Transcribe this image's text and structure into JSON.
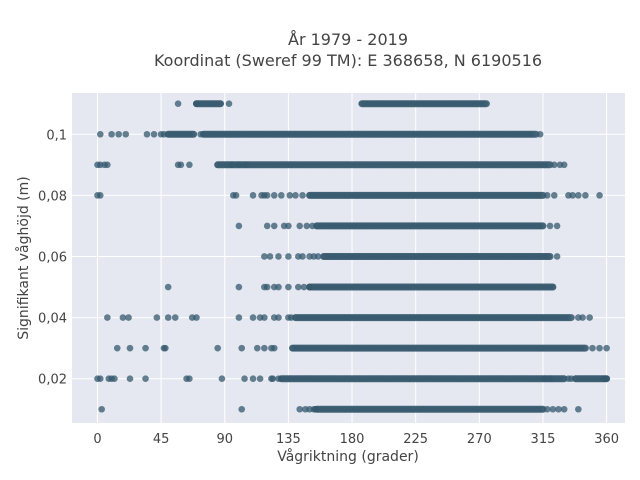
{
  "chart_data": {
    "type": "scatter",
    "title_lines": [
      "År 1979 - 2019",
      "Koordinat (Sweref 99 TM): E 368658, N 6190516"
    ],
    "xlabel": "Vågriktning (grader)",
    "ylabel": "Signifikant våghöjd (m)",
    "xlim": [
      -18,
      373
    ],
    "ylim": [
      0.0055,
      0.1135
    ],
    "x_ticks": [
      0,
      45,
      90,
      135,
      180,
      225,
      270,
      315,
      360
    ],
    "y_ticks": [
      0.02,
      0.04,
      0.06,
      0.08,
      0.1
    ],
    "y_tick_labels": [
      "0,02",
      "0,04",
      "0,06",
      "0,08",
      "0,1"
    ],
    "grid": true,
    "marker_color": "#34586c",
    "plot_bg": "#e5e8f1",
    "levels": [
      {
        "y": 0.01,
        "dense": [
          [
            155,
            315
          ]
        ],
        "sparse": [
          3,
          102,
          143,
          147,
          150,
          153,
          154,
          318,
          322,
          326,
          330,
          340
        ]
      },
      {
        "y": 0.02,
        "dense": [
          [
            130,
            330
          ],
          [
            338,
            360
          ]
        ],
        "sparse": [
          0,
          2,
          8,
          10,
          12,
          23,
          34,
          63,
          65,
          88,
          104,
          110,
          115,
          123,
          124,
          128,
          316,
          320,
          333,
          335,
          358,
          360
        ]
      },
      {
        "y": 0.03,
        "dense": [
          [
            138,
            345
          ]
        ],
        "sparse": [
          14,
          23,
          34,
          47,
          48,
          85,
          102,
          113,
          118,
          123,
          125,
          350,
          355,
          360
        ]
      },
      {
        "y": 0.04,
        "dense": [
          [
            140,
            335
          ]
        ],
        "sparse": [
          7,
          18,
          22,
          42,
          50,
          55,
          67,
          70,
          100,
          110,
          115,
          118,
          125,
          128,
          135,
          137,
          340,
          343,
          348
        ]
      },
      {
        "y": 0.05,
        "dense": [
          [
            150,
            322
          ]
        ],
        "sparse": [
          50,
          100,
          118,
          120,
          125,
          128,
          135,
          142,
          146,
          150
        ]
      },
      {
        "y": 0.06,
        "dense": [
          [
            160,
            320
          ]
        ],
        "sparse": [
          118,
          122,
          128,
          135,
          142,
          145,
          150,
          153,
          156,
          325
        ]
      },
      {
        "y": 0.07,
        "dense": [
          [
            155,
            315
          ]
        ],
        "sparse": [
          100,
          120,
          125,
          132,
          135,
          143,
          148,
          152,
          320,
          325
        ]
      },
      {
        "y": 0.08,
        "dense": [
          [
            150,
            315
          ]
        ],
        "sparse": [
          0,
          2,
          96,
          98,
          110,
          116,
          118,
          120,
          125,
          130,
          136,
          140,
          145,
          318,
          323,
          333,
          336,
          340,
          345,
          355
        ]
      },
      {
        "y": 0.09,
        "dense": [
          [
            85,
            320
          ]
        ],
        "sparse": [
          0,
          2,
          5,
          7,
          57,
          59,
          65,
          95,
          100,
          105,
          323,
          327,
          330
        ]
      },
      {
        "y": 0.1,
        "dense": [
          [
            50,
            68
          ],
          [
            75,
            310
          ]
        ],
        "sparse": [
          2,
          10,
          15,
          20,
          35,
          40,
          45,
          47,
          73,
          313
        ]
      },
      {
        "y": 0.11,
        "dense": [
          [
            70,
            87
          ],
          [
            187,
            275
          ]
        ],
        "sparse": [
          57,
          70,
          93
        ]
      }
    ]
  }
}
